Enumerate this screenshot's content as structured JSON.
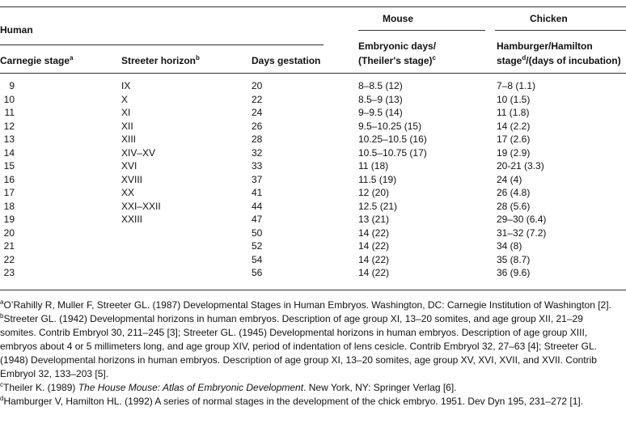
{
  "table": {
    "group_headers": {
      "human": "Human",
      "mouse": "Mouse",
      "chicken": "Chicken"
    },
    "columns": [
      {
        "label": "Carnegie stage",
        "sup": "a"
      },
      {
        "label": "Streeter horizon",
        "sup": "b"
      },
      {
        "label": "Days gestation"
      },
      {
        "label_line1": "Embryonic days/",
        "label_line2": "(Theiler's stage)",
        "sup": "c"
      },
      {
        "label_line1": "Hamburger/Hamilton",
        "label_line2a": "stage",
        "sup": "d",
        "label_line2b": "/(days of incubation)"
      }
    ],
    "rows": [
      [
        "9",
        "IX",
        "20",
        "8–8.5 (12)",
        "7–8 (1.1)"
      ],
      [
        "10",
        "X",
        "22",
        "8.5–9 (13)",
        "10 (1.5)"
      ],
      [
        "11",
        "XI",
        "24",
        "9–9.5 (14)",
        "11 (1.8)"
      ],
      [
        "12",
        "XII",
        "26",
        "9.5–10.25 (15)",
        "14 (2.2)"
      ],
      [
        "13",
        "XIII",
        "28",
        "10.25–10.5 (16)",
        "17 (2.6)"
      ],
      [
        "14",
        "XIV–XV",
        "32",
        "10.5–10.75 (17)",
        "19 (2.9)"
      ],
      [
        "15",
        "XVI",
        "33",
        "11 (18)",
        "20-21 (3.3)"
      ],
      [
        "16",
        "XVIII",
        "37",
        "11.5 (19)",
        "24 (4)"
      ],
      [
        "17",
        "XX",
        "41",
        "12 (20)",
        "26 (4.8)"
      ],
      [
        "18",
        "XXI–XXII",
        "44",
        "12.5 (21)",
        "28 (5.6)"
      ],
      [
        "19",
        "XXIII",
        "47",
        "13 (21)",
        "29–30 (6.4)"
      ],
      [
        "20",
        null,
        "50",
        "14 (22)",
        "31–32 (7.2)"
      ],
      [
        "21",
        null,
        "52",
        "14 (22)",
        "34 (8)"
      ],
      [
        "22",
        null,
        "54",
        "14 (22)",
        "35 (8.7)"
      ],
      [
        "23",
        null,
        "56",
        "14 (22)",
        "36 (9.6)"
      ]
    ]
  },
  "footnotes": [
    {
      "mark": "a",
      "text": "O’Rahilly R, Muller F, Streeter GL. (1987) Developmental Stages in Human Embryos. Washington, DC: Carnegie Institution of Washington [2]."
    },
    {
      "mark": "b",
      "text": "Streeter GL. (1942) Developmental horizons in human embryos. Description of age group XI, 13–20 somites, and age group XII, 21–29 somites. Contrib Embryol 30, 211–245 [3]; Streeter GL. (1945) Developmental horizons in human embryos. Description of age group XIII, embryos about 4 or 5 millimeters long, and age group XIV, period of indentation of lens cesicle. Contrib Embryol 32, 27–63 [4]; Streeter GL. (1948) Developmental horizons in human embryos. Description of age group XI, 13–20 somites, age group XV, XVI, XVII, and XVII. Contrib Embryol 32, 133–203 [5]."
    },
    {
      "mark": "c",
      "text": "Theiler K. (1989) ",
      "title": "The House Mouse: Atlas of Embryonic Development",
      "rest": ". New York, NY: Springer Verlag [6]."
    },
    {
      "mark": "d",
      "text": "Hamburger V, Hamilton HL. (1992) A series of normal stages in the development of the chick embryo. 1951. Dev Dyn 195, 231–272 [1]."
    }
  ]
}
